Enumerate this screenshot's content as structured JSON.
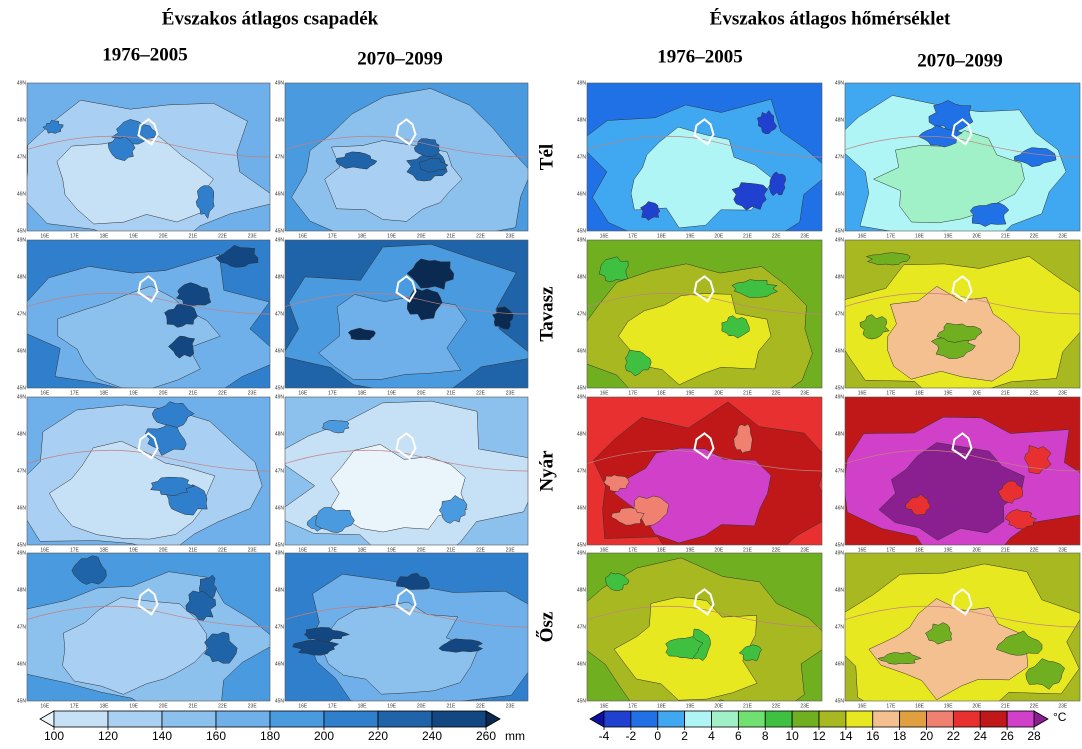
{
  "precipitation": {
    "title": "Évszakos átlagos csapadék",
    "periods": [
      "1976–2005",
      "2070–2099"
    ],
    "colorbar": {
      "ticks": [
        100,
        120,
        140,
        160,
        180,
        200,
        220,
        240,
        260
      ],
      "unit": "mm",
      "colors": [
        "#eaf4fb",
        "#c6e0f5",
        "#a9d0f2",
        "#8cc1ee",
        "#6fb0ea",
        "#4a9ae0",
        "#2f7fcc",
        "#1f63a8",
        "#134782",
        "#0a2a52"
      ]
    }
  },
  "temperature": {
    "title": "Évszakos átlagos hőmérséklet",
    "periods": [
      "1976–2005",
      "2070–2099"
    ],
    "seasons": [
      "Tél",
      "Tavasz",
      "Nyár",
      "Ősz"
    ],
    "colorbar": {
      "ticks": [
        -4,
        -2,
        0,
        2,
        4,
        6,
        8,
        10,
        12,
        14,
        16,
        18,
        20,
        22,
        24,
        26,
        28
      ],
      "unit": "°C",
      "colors": [
        "#1010a0",
        "#2040d0",
        "#2070e6",
        "#40a8f0",
        "#b0f5f5",
        "#a0f0c8",
        "#70e070",
        "#40c040",
        "#70b020",
        "#a8b820",
        "#e8e820",
        "#f5c090",
        "#e0a040",
        "#f08070",
        "#e83030",
        "#c01818",
        "#d040c8",
        "#8a2090"
      ]
    }
  },
  "map_axes": {
    "lon": [
      "16E",
      "17E",
      "18E",
      "19E",
      "20E",
      "21E",
      "22E",
      "23E"
    ],
    "lat": [
      "45N",
      "46N",
      "47N",
      "48N",
      "49N"
    ]
  }
}
